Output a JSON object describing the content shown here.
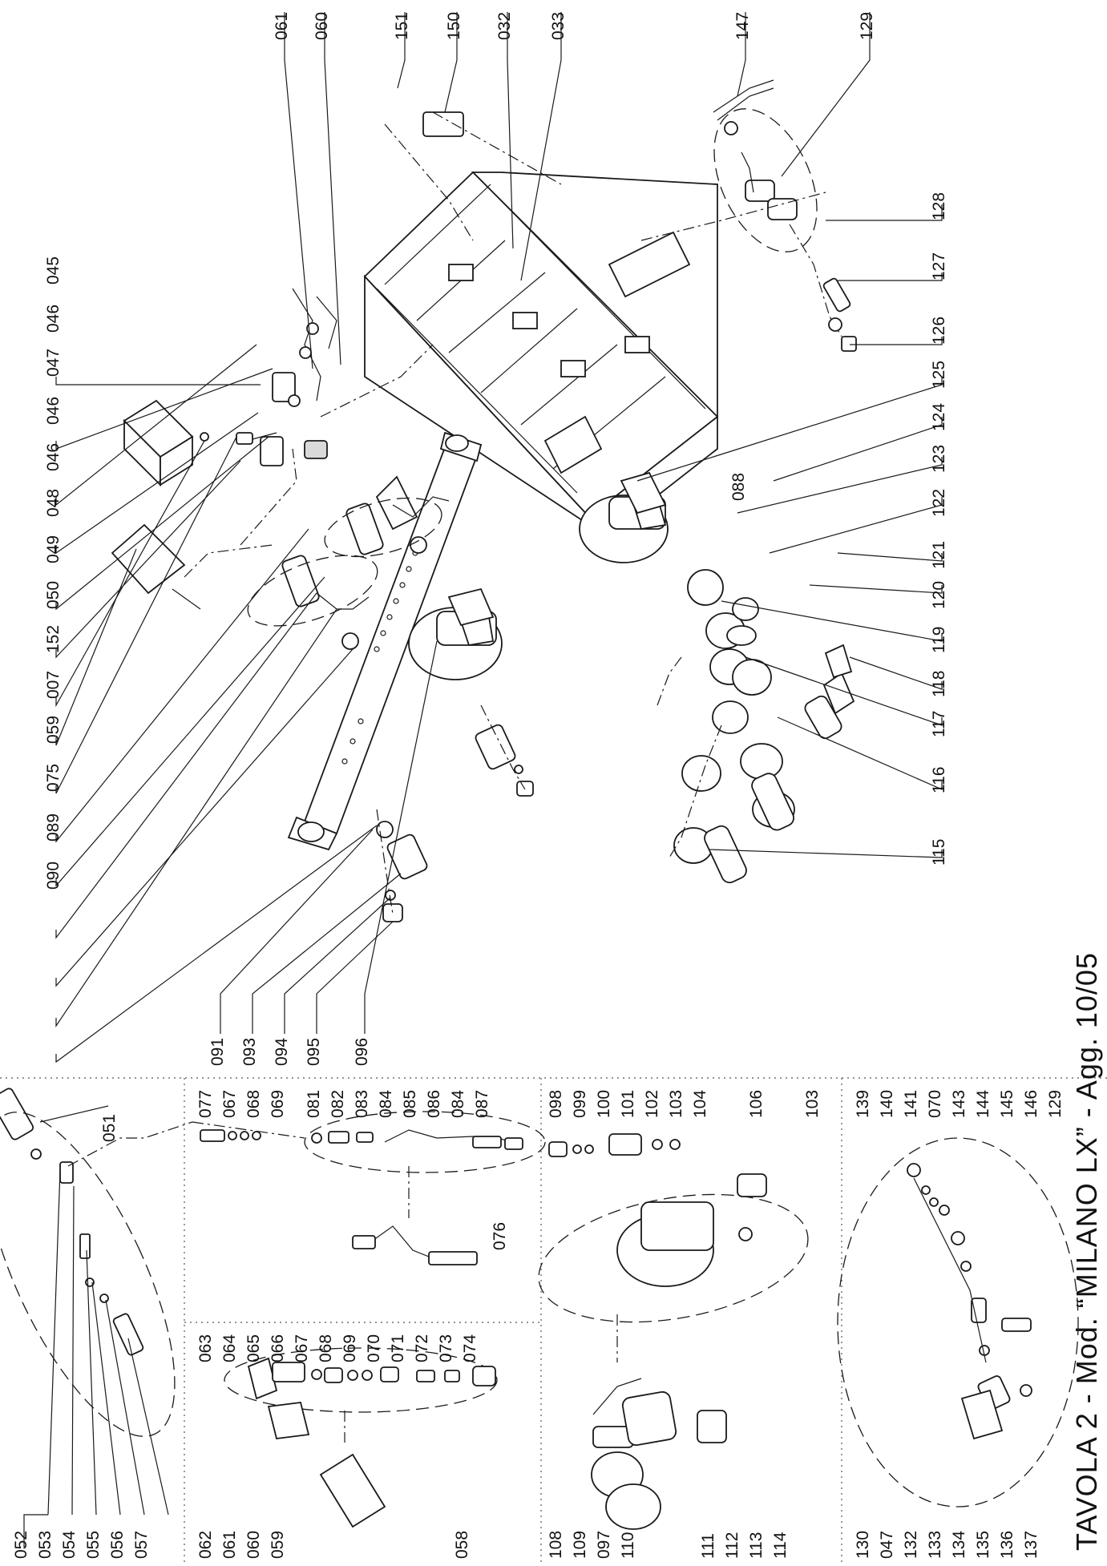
{
  "title": "TAVOLA 2 - Mod. “MILANO LX” - Agg. 10/05",
  "labels": {
    "l061a": "061",
    "l060a": "060",
    "l151": "151",
    "l150": "150",
    "l032": "032",
    "l033": "033",
    "l147": "147",
    "l129a": "129",
    "l128": "128",
    "l127": "127",
    "l126": "126",
    "l125": "125",
    "l124": "124",
    "l123": "123",
    "l122": "122",
    "l121": "121",
    "l120": "120",
    "l119": "119",
    "l118": "118",
    "l117": "117",
    "l116": "116",
    "l115": "115",
    "l045": "045",
    "l046a": "046",
    "l047a": "047",
    "l046b": "046",
    "l046c": "046",
    "l048": "048",
    "l049": "049",
    "l050": "050",
    "l152": "152",
    "l007": "007",
    "l059a": "059",
    "l075": "075",
    "l089": "089",
    "l090": "090",
    "l088": "088",
    "l091": "091",
    "l093": "093",
    "l094": "094",
    "l095": "095",
    "l096": "096",
    "l051": "051",
    "l052": "052",
    "l053": "053",
    "l054": "054",
    "l055": "055",
    "l056": "056",
    "l057": "057",
    "l077": "077",
    "l067a": "067",
    "l068a": "068",
    "l069a": "069",
    "l081": "081",
    "l082": "082",
    "l083": "083",
    "l084a": "084",
    "l085": "085",
    "l086": "086",
    "l084b": "084",
    "l087": "087",
    "l076": "076",
    "l063": "063",
    "l064": "064",
    "l065": "065",
    "l066": "066",
    "l067b": "067",
    "l068b": "068",
    "l069b": "069",
    "l070a": "070",
    "l071": "071",
    "l072": "072",
    "l073": "073",
    "l074": "074",
    "l062": "062",
    "l061b": "061",
    "l060b": "060",
    "l059b": "059",
    "l058": "058",
    "l098": "098",
    "l099": "099",
    "l100": "100",
    "l101": "101",
    "l102": "102",
    "l103a": "103",
    "l104": "104",
    "l106": "106",
    "l103b": "103",
    "l108": "108",
    "l109": "109",
    "l097": "097",
    "l110": "110",
    "l111": "111",
    "l112": "112",
    "l113": "113",
    "l114": "114",
    "l139": "139",
    "l140": "140",
    "l141": "141",
    "l070b": "070",
    "l143": "143",
    "l144": "144",
    "l145": "145",
    "l146": "146",
    "l129b": "129",
    "l130": "130",
    "l047b": "047",
    "l132": "132",
    "l133": "133",
    "l134": "134",
    "l135": "135",
    "l136": "136",
    "l137": "137"
  }
}
